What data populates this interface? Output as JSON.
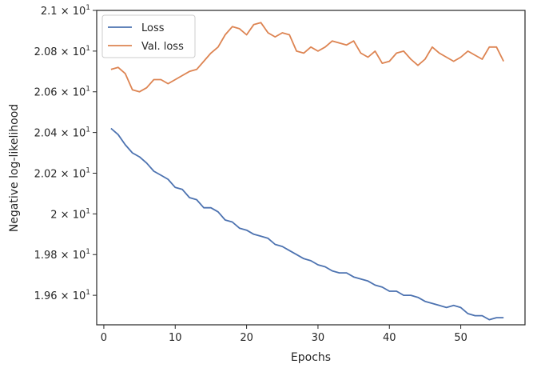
{
  "chart_data": {
    "type": "line",
    "title": "",
    "xlabel": "Epochs",
    "ylabel": "Negative log-likelihood",
    "xlim": [
      -1,
      59
    ],
    "ylim": [
      19.455,
      21.0
    ],
    "xticks": [
      0,
      10,
      20,
      30,
      40,
      50
    ],
    "yticks": [
      {
        "value": 19.6,
        "label": "1.96",
        "exp": "1"
      },
      {
        "value": 19.8,
        "label": "1.98",
        "exp": "1"
      },
      {
        "value": 20.0,
        "label": "2",
        "exp": "1"
      },
      {
        "value": 20.2,
        "label": "2.02",
        "exp": "1"
      },
      {
        "value": 20.4,
        "label": "2.04",
        "exp": "1"
      },
      {
        "value": 20.6,
        "label": "2.06",
        "exp": "1"
      },
      {
        "value": 20.8,
        "label": "2.08",
        "exp": "1"
      },
      {
        "value": 21.0,
        "label": "2.1",
        "exp": "1"
      }
    ],
    "grid": false,
    "legend_position": "top-left",
    "series": [
      {
        "name": "Loss",
        "color": "#4c72b0",
        "x": [
          1,
          2,
          3,
          4,
          5,
          6,
          7,
          8,
          9,
          10,
          11,
          12,
          13,
          14,
          15,
          16,
          17,
          18,
          19,
          20,
          21,
          22,
          23,
          24,
          25,
          26,
          27,
          28,
          29,
          30,
          31,
          32,
          33,
          34,
          35,
          36,
          37,
          38,
          39,
          40,
          41,
          42,
          43,
          44,
          45,
          46,
          47,
          48,
          49,
          50,
          51,
          52,
          53,
          54,
          55,
          56
        ],
        "values": [
          20.42,
          20.39,
          20.34,
          20.3,
          20.28,
          20.25,
          20.21,
          20.19,
          20.17,
          20.13,
          20.12,
          20.08,
          20.07,
          20.03,
          20.03,
          20.01,
          19.97,
          19.96,
          19.93,
          19.92,
          19.9,
          19.89,
          19.88,
          19.85,
          19.84,
          19.82,
          19.8,
          19.78,
          19.77,
          19.75,
          19.74,
          19.72,
          19.71,
          19.71,
          19.69,
          19.68,
          19.67,
          19.65,
          19.64,
          19.62,
          19.62,
          19.6,
          19.6,
          19.59,
          19.57,
          19.56,
          19.55,
          19.54,
          19.55,
          19.54,
          19.51,
          19.5,
          19.5,
          19.48,
          19.49,
          19.49
        ]
      },
      {
        "name": "Val. loss",
        "color": "#dd8452",
        "x": [
          1,
          2,
          3,
          4,
          5,
          6,
          7,
          8,
          9,
          10,
          11,
          12,
          13,
          14,
          15,
          16,
          17,
          18,
          19,
          20,
          21,
          22,
          23,
          24,
          25,
          26,
          27,
          28,
          29,
          30,
          31,
          32,
          33,
          34,
          35,
          36,
          37,
          38,
          39,
          40,
          41,
          42,
          43,
          44,
          45,
          46,
          47,
          48,
          49,
          50,
          51,
          52,
          53,
          54,
          55,
          56
        ],
        "values": [
          20.71,
          20.72,
          20.69,
          20.61,
          20.6,
          20.62,
          20.66,
          20.66,
          20.64,
          20.66,
          20.68,
          20.7,
          20.71,
          20.75,
          20.79,
          20.82,
          20.88,
          20.92,
          20.91,
          20.88,
          20.93,
          20.94,
          20.89,
          20.87,
          20.89,
          20.88,
          20.8,
          20.79,
          20.82,
          20.8,
          20.82,
          20.85,
          20.84,
          20.83,
          20.85,
          20.79,
          20.77,
          20.8,
          20.74,
          20.75,
          20.79,
          20.8,
          20.76,
          20.73,
          20.76,
          20.82,
          20.79,
          20.77,
          20.75,
          20.77,
          20.8,
          20.78,
          20.76,
          20.82,
          20.82,
          20.75
        ]
      }
    ]
  }
}
